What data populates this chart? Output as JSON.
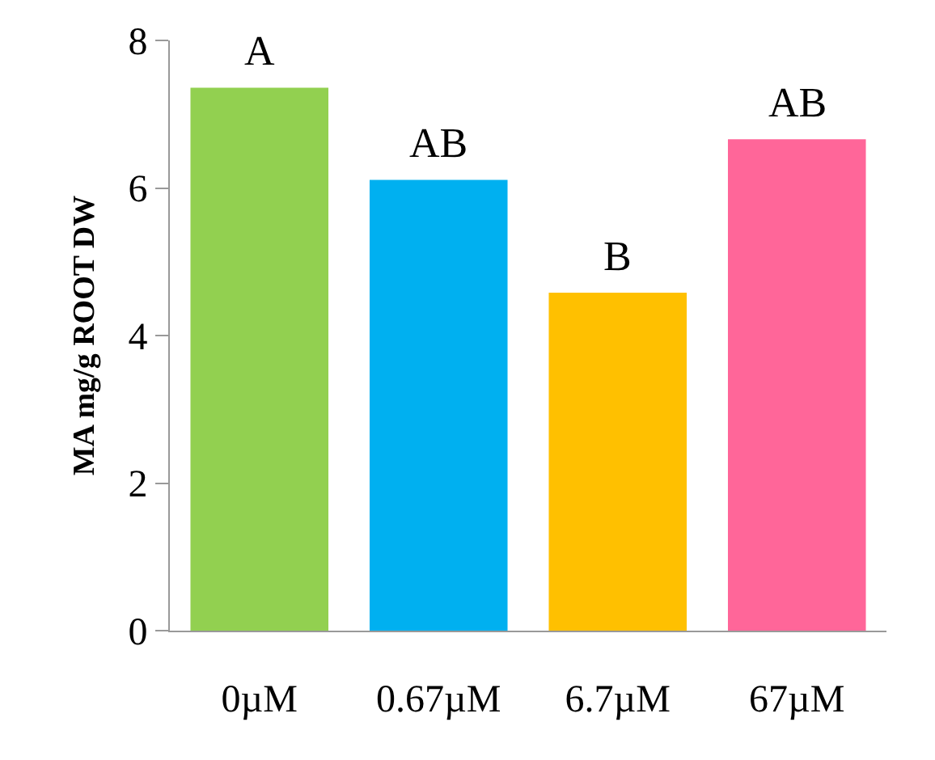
{
  "chart_data": {
    "type": "bar",
    "ylabel": "MA mg/g ROOT DW",
    "categories": [
      "0µM",
      "0.67µM",
      "6.7µM",
      "67µM"
    ],
    "values": [
      7.36,
      6.11,
      4.58,
      6.66
    ],
    "colors": [
      "#92d050",
      "#00b0f0",
      "#ffc000",
      "#ff6699"
    ],
    "ylim": [
      0,
      8
    ],
    "yticks": [
      0,
      2,
      4,
      6,
      8
    ],
    "annotations": [
      {
        "text": "A",
        "x": "0µM",
        "y": 7.36
      },
      {
        "text": "AB",
        "x": "0.67µM",
        "y": 6.11
      },
      {
        "text": "B",
        "x": "6.7µM",
        "y": 4.58
      },
      {
        "text": "AB",
        "x": "67µM",
        "y": 6.66
      }
    ]
  }
}
